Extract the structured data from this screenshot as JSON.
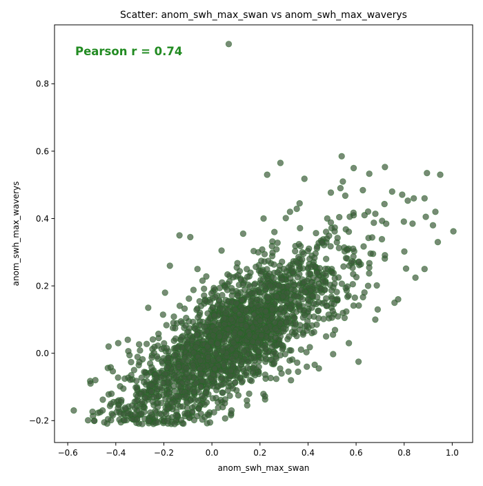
{
  "chart_data": {
    "type": "scatter",
    "title": "Scatter: anom_swh_max_swan vs anom_swh_max_waverys",
    "xlabel": "anom_swh_max_swan",
    "ylabel": "anom_swh_max_waverys",
    "xlim": [
      -0.655,
      1.085
    ],
    "ylim": [
      -0.265,
      0.975
    ],
    "xticks": [
      -0.6,
      -0.4,
      -0.2,
      0.0,
      0.2,
      0.4,
      0.6,
      0.8,
      1.0
    ],
    "xtick_labels": [
      "−0.6",
      "−0.4",
      "−0.2",
      "0.0",
      "0.2",
      "0.4",
      "0.6",
      "0.8",
      "1.0"
    ],
    "yticks": [
      -0.2,
      0.0,
      0.2,
      0.4,
      0.6,
      0.8
    ],
    "ytick_labels": [
      "−0.2",
      "0.0",
      "0.2",
      "0.4",
      "0.6",
      "0.8"
    ],
    "grid": false,
    "annotation": {
      "text": "Pearson r = 0.74",
      "color": "#228b22"
    },
    "marker": {
      "fill": "#3d5a3a",
      "edge": "#1f6b1f",
      "opacity": 0.7
    },
    "generator": {
      "n": 2200,
      "x_mean": 0.09,
      "x_sd": 0.23,
      "slope": 0.45,
      "intercept": 0.005,
      "noise_sd": 0.085,
      "seed": 7
    },
    "points": [
      [
        0.07,
        0.918
      ],
      [
        -0.575,
        -0.17
      ],
      [
        1.005,
        0.362
      ],
      [
        0.95,
        0.53
      ],
      [
        0.895,
        0.535
      ],
      [
        0.54,
        0.585
      ],
      [
        0.285,
        0.565
      ],
      [
        0.23,
        0.53
      ],
      [
        0.72,
        0.553
      ],
      [
        0.59,
        0.55
      ],
      [
        0.655,
        0.533
      ],
      [
        0.385,
        0.518
      ],
      [
        0.535,
        0.49
      ],
      [
        0.545,
        0.51
      ],
      [
        0.555,
        0.468
      ],
      [
        0.75,
        0.48
      ],
      [
        0.84,
        0.46
      ],
      [
        0.885,
        0.46
      ],
      [
        0.815,
        0.453
      ],
      [
        0.89,
        0.405
      ],
      [
        0.93,
        0.42
      ],
      [
        0.835,
        0.385
      ],
      [
        0.495,
        0.477
      ],
      [
        -0.135,
        0.35
      ],
      [
        -0.09,
        0.345
      ],
      [
        0.04,
        0.305
      ],
      [
        -0.195,
        0.18
      ],
      [
        0.635,
        0.41
      ],
      [
        0.92,
        0.38
      ],
      [
        0.94,
        0.33
      ],
      [
        0.885,
        0.25
      ],
      [
        0.61,
        -0.025
      ],
      [
        0.57,
        0.03
      ],
      [
        0.445,
        -0.045
      ],
      [
        0.395,
        -0.04
      ],
      [
        0.29,
        -0.06
      ],
      [
        0.475,
        0.05
      ],
      [
        -0.505,
        -0.09
      ],
      [
        -0.485,
        -0.08
      ],
      [
        -0.465,
        -0.175
      ],
      [
        -0.455,
        -0.17
      ],
      [
        -0.42,
        -0.15
      ],
      [
        -0.38,
        -0.18
      ],
      [
        -0.29,
        -0.21
      ],
      [
        -0.225,
        -0.205
      ],
      [
        -0.155,
        -0.21
      ],
      [
        -0.055,
        -0.165
      ],
      [
        0.045,
        -0.16
      ],
      [
        0.11,
        -0.125
      ],
      [
        0.155,
        -0.12
      ],
      [
        -0.175,
        0.26
      ],
      [
        -0.06,
        0.25
      ],
      [
        0.76,
        0.15
      ],
      [
        0.775,
        0.16
      ],
      [
        0.68,
        0.1
      ],
      [
        0.69,
        0.13
      ],
      [
        0.65,
        0.2
      ],
      [
        0.595,
        0.165
      ],
      [
        -0.43,
        0.02
      ],
      [
        -0.39,
        0.03
      ],
      [
        -0.35,
        0.04
      ],
      [
        -0.265,
        0.135
      ],
      [
        0.13,
        0.355
      ],
      [
        0.26,
        0.36
      ],
      [
        0.215,
        0.4
      ],
      [
        0.325,
        0.42
      ],
      [
        0.365,
        0.445
      ],
      [
        0.48,
        0.4
      ]
    ]
  }
}
